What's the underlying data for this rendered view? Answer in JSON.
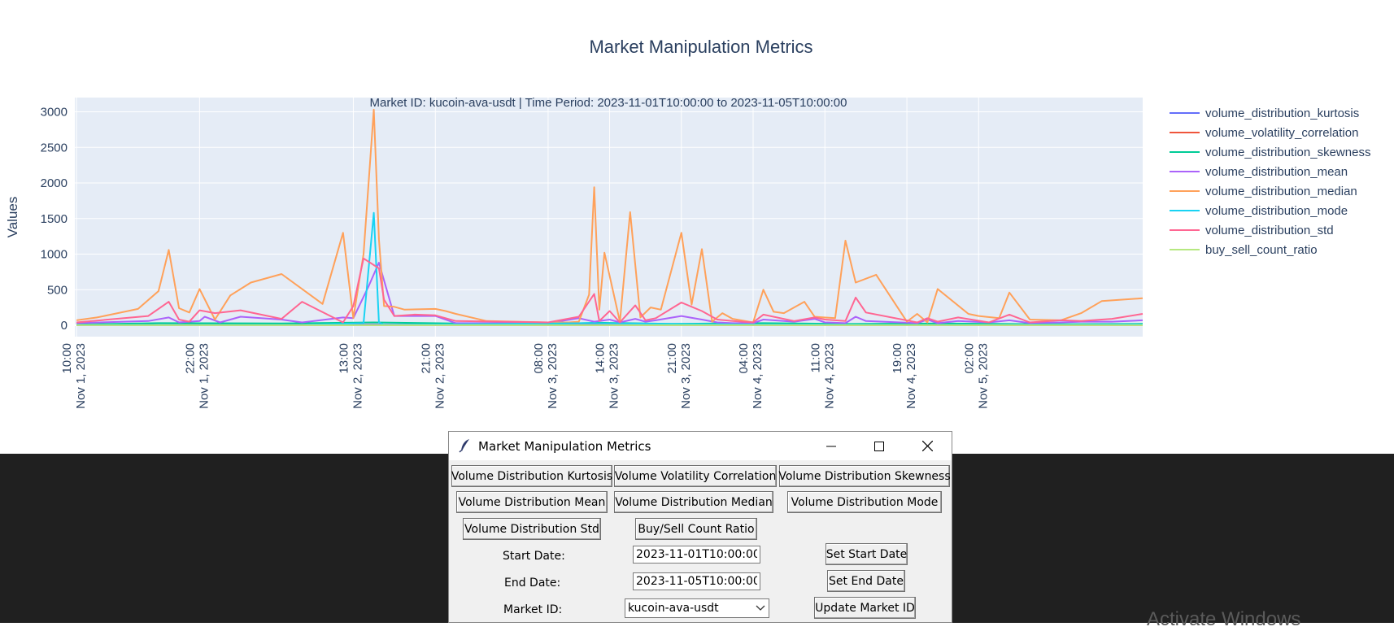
{
  "chart_data": {
    "type": "line",
    "title": "Market Manipulation Metrics",
    "subtitle": "Market ID: kucoin-ava-usdt | Time Period: 2023-11-01T10:00:00 to 2023-11-05T10:00:00",
    "ylabel": "Values",
    "xlabel": "",
    "ylim": [
      -160,
      3200
    ],
    "xlim": [
      "2023-11-01T09:50",
      "2023-11-05T18:00"
    ],
    "grid": true,
    "legend_position": "right",
    "yticks": [
      0,
      500,
      1000,
      1500,
      2000,
      2500,
      3000
    ],
    "xticks": [
      {
        "at": "2023-11-01T10:00",
        "time": "10:00",
        "date": "Nov 1, 2023"
      },
      {
        "at": "2023-11-01T22:00",
        "time": "22:00",
        "date": "Nov 1, 2023"
      },
      {
        "at": "2023-11-02T13:00",
        "time": "13:00",
        "date": "Nov 2, 2023"
      },
      {
        "at": "2023-11-02T21:00",
        "time": "21:00",
        "date": "Nov 2, 2023"
      },
      {
        "at": "2023-11-03T08:00",
        "time": "08:00",
        "date": "Nov 3, 2023"
      },
      {
        "at": "2023-11-03T14:00",
        "time": "14:00",
        "date": "Nov 3, 2023"
      },
      {
        "at": "2023-11-03T21:00",
        "time": "21:00",
        "date": "Nov 3, 2023"
      },
      {
        "at": "2023-11-04T04:00",
        "time": "04:00",
        "date": "Nov 4, 2023"
      },
      {
        "at": "2023-11-04T11:00",
        "time": "11:00",
        "date": "Nov 4, 2023"
      },
      {
        "at": "2023-11-04T19:00",
        "time": "19:00",
        "date": "Nov 4, 2023"
      },
      {
        "at": "2023-11-05T02:00",
        "time": "02:00",
        "date": "Nov 5, 2023"
      }
    ],
    "series": [
      {
        "name": "volume_distribution_kurtosis",
        "color": "#636efa",
        "x": [
          "2023-11-01T10:00",
          "2023-11-02T08:00",
          "2023-11-02T15:00",
          "2023-11-03T09:00",
          "2023-11-03T12:00",
          "2023-11-03T19:00",
          "2023-11-04T04:00",
          "2023-11-04T12:00",
          "2023-11-04T20:00",
          "2023-11-05T06:00",
          "2023-11-05T18:00"
        ],
        "y": [
          5,
          8,
          10,
          6,
          12,
          9,
          14,
          8,
          10,
          7,
          9
        ]
      },
      {
        "name": "volume_volatility_correlation",
        "color": "#EF553B",
        "x": [
          "2023-11-01T10:00",
          "2023-11-02T00:00",
          "2023-11-02T16:00",
          "2023-11-03T10:00",
          "2023-11-04T02:00",
          "2023-11-04T18:00",
          "2023-11-05T18:00"
        ],
        "y": [
          1,
          1,
          1,
          1,
          1,
          1,
          1
        ]
      },
      {
        "name": "volume_distribution_skewness",
        "color": "#00cc96",
        "x": [
          "2023-11-01T10:00",
          "2023-11-01T18:00",
          "2023-11-02T06:00",
          "2023-11-02T15:00",
          "2023-11-03T06:00",
          "2023-11-03T13:00",
          "2023-11-03T20:00",
          "2023-11-04T05:00",
          "2023-11-04T13:00",
          "2023-11-04T22:00",
          "2023-11-05T08:00",
          "2023-11-05T18:00"
        ],
        "y": [
          10,
          30,
          25,
          40,
          12,
          35,
          20,
          30,
          18,
          25,
          15,
          20
        ]
      },
      {
        "name": "volume_distribution_mean",
        "color": "#ab63fa",
        "x": [
          "2023-11-01T10:00",
          "2023-11-01T17:00",
          "2023-11-01T19:00",
          "2023-11-01T20:00",
          "2023-11-01T22:00",
          "2023-11-01T22:30",
          "2023-11-02T00:00",
          "2023-11-02T02:00",
          "2023-11-02T06:00",
          "2023-11-02T08:00",
          "2023-11-02T12:00",
          "2023-11-02T13:00",
          "2023-11-02T14:30",
          "2023-11-02T15:30",
          "2023-11-02T17:00",
          "2023-11-02T21:00",
          "2023-11-02T23:00",
          "2023-11-03T08:00",
          "2023-11-03T11:00",
          "2023-11-03T12:30",
          "2023-11-03T14:00",
          "2023-11-03T15:00",
          "2023-11-03T16:30",
          "2023-11-03T17:30",
          "2023-11-03T18:30",
          "2023-11-03T21:00",
          "2023-11-03T23:00",
          "2023-11-04T00:30",
          "2023-11-04T02:00",
          "2023-11-04T04:00",
          "2023-11-04T05:00",
          "2023-11-04T08:00",
          "2023-11-04T10:00",
          "2023-11-04T11:00",
          "2023-11-04T13:00",
          "2023-11-04T14:00",
          "2023-11-04T15:00",
          "2023-11-04T20:00",
          "2023-11-04T21:00",
          "2023-11-04T22:00",
          "2023-11-05T00:00",
          "2023-11-05T03:00",
          "2023-11-05T05:00",
          "2023-11-05T07:00",
          "2023-11-05T10:00",
          "2023-11-05T12:00",
          "2023-11-05T15:00",
          "2023-11-05T18:00"
        ],
        "y": [
          30,
          60,
          110,
          40,
          60,
          120,
          40,
          120,
          80,
          40,
          110,
          100,
          550,
          880,
          130,
          130,
          30,
          30,
          100,
          50,
          80,
          40,
          90,
          50,
          70,
          130,
          80,
          40,
          30,
          30,
          80,
          50,
          90,
          40,
          30,
          120,
          60,
          30,
          80,
          30,
          60,
          40,
          70,
          30,
          40,
          50,
          50,
          70
        ]
      },
      {
        "name": "volume_distribution_median",
        "color": "#FFA15A",
        "x": [
          "2023-11-01T10:00",
          "2023-11-01T12:00",
          "2023-11-01T16:00",
          "2023-11-01T18:00",
          "2023-11-01T19:00",
          "2023-11-01T20:00",
          "2023-11-01T21:00",
          "2023-11-01T22:00",
          "2023-11-01T23:30",
          "2023-11-02T01:00",
          "2023-11-02T03:00",
          "2023-11-02T06:00",
          "2023-11-02T10:00",
          "2023-11-02T12:00",
          "2023-11-02T13:00",
          "2023-11-02T14:00",
          "2023-11-02T15:00",
          "2023-11-02T15:30",
          "2023-11-02T16:00",
          "2023-11-02T17:00",
          "2023-11-02T18:00",
          "2023-11-02T21:00",
          "2023-11-02T22:00",
          "2023-11-02T23:00",
          "2023-11-03T02:00",
          "2023-11-03T05:00",
          "2023-11-03T08:00",
          "2023-11-03T10:00",
          "2023-11-03T11:00",
          "2023-11-03T12:00",
          "2023-11-03T12:30",
          "2023-11-03T13:00",
          "2023-11-03T13:30",
          "2023-11-03T15:00",
          "2023-11-03T16:00",
          "2023-11-03T17:00",
          "2023-11-03T18:00",
          "2023-11-03T19:00",
          "2023-11-03T21:00",
          "2023-11-03T22:00",
          "2023-11-03T23:00",
          "2023-11-04T00:00",
          "2023-11-04T01:00",
          "2023-11-04T02:00",
          "2023-11-04T04:00",
          "2023-11-04T05:00",
          "2023-11-04T06:00",
          "2023-11-04T07:00",
          "2023-11-04T09:00",
          "2023-11-04T10:00",
          "2023-11-04T12:00",
          "2023-11-04T13:00",
          "2023-11-04T14:00",
          "2023-11-04T16:00",
          "2023-11-04T19:00",
          "2023-11-04T20:00",
          "2023-11-04T21:00",
          "2023-11-04T22:00",
          "2023-11-05T01:00",
          "2023-11-05T02:00",
          "2023-11-05T04:00",
          "2023-11-05T05:00",
          "2023-11-05T07:00",
          "2023-11-05T10:00",
          "2023-11-05T12:00",
          "2023-11-05T14:00",
          "2023-11-05T16:00",
          "2023-11-05T18:00"
        ],
        "y": [
          70,
          110,
          230,
          480,
          1060,
          240,
          180,
          510,
          80,
          420,
          600,
          720,
          300,
          1300,
          100,
          1000,
          3030,
          1210,
          270,
          260,
          220,
          230,
          200,
          160,
          60,
          50,
          40,
          40,
          50,
          430,
          1940,
          220,
          1020,
          50,
          1590,
          110,
          250,
          220,
          1300,
          290,
          1070,
          50,
          170,
          90,
          40,
          500,
          190,
          170,
          330,
          120,
          100,
          1190,
          600,
          710,
          50,
          160,
          40,
          510,
          160,
          130,
          100,
          460,
          80,
          70,
          170,
          340,
          360,
          380
        ]
      },
      {
        "name": "volume_distribution_mode",
        "color": "#19d3f3",
        "x": [
          "2023-11-01T10:00",
          "2023-11-02T08:00",
          "2023-11-02T14:00",
          "2023-11-02T15:00",
          "2023-11-02T15:30",
          "2023-11-02T16:00",
          "2023-11-03T12:00",
          "2023-11-04T05:00",
          "2023-11-04T20:00",
          "2023-11-05T18:00"
        ],
        "y": [
          5,
          5,
          30,
          1580,
          40,
          5,
          30,
          10,
          5,
          10
        ]
      },
      {
        "name": "volume_distribution_std",
        "color": "#FF6692",
        "x": [
          "2023-11-01T10:00",
          "2023-11-01T17:00",
          "2023-11-01T19:00",
          "2023-11-01T20:00",
          "2023-11-01T21:00",
          "2023-11-01T22:00",
          "2023-11-01T23:30",
          "2023-11-02T02:00",
          "2023-11-02T06:00",
          "2023-11-02T08:00",
          "2023-11-02T12:00",
          "2023-11-02T13:00",
          "2023-11-02T14:00",
          "2023-11-02T15:30",
          "2023-11-02T16:00",
          "2023-11-02T17:00",
          "2023-11-02T19:00",
          "2023-11-02T21:00",
          "2023-11-02T23:00",
          "2023-11-03T08:00",
          "2023-11-03T11:00",
          "2023-11-03T12:30",
          "2023-11-03T13:00",
          "2023-11-03T14:00",
          "2023-11-03T15:00",
          "2023-11-03T16:30",
          "2023-11-03T17:30",
          "2023-11-03T18:30",
          "2023-11-03T21:00",
          "2023-11-03T23:00",
          "2023-11-04T00:30",
          "2023-11-04T02:00",
          "2023-11-04T04:00",
          "2023-11-04T05:00",
          "2023-11-04T08:00",
          "2023-11-04T10:00",
          "2023-11-04T11:00",
          "2023-11-04T13:00",
          "2023-11-04T14:00",
          "2023-11-04T15:00",
          "2023-11-04T20:00",
          "2023-11-04T21:00",
          "2023-11-04T22:00",
          "2023-11-05T00:00",
          "2023-11-05T03:00",
          "2023-11-05T05:00",
          "2023-11-05T07:00",
          "2023-11-05T10:00",
          "2023-11-05T12:00",
          "2023-11-05T15:00",
          "2023-11-05T18:00"
        ],
        "y": [
          40,
          130,
          330,
          80,
          50,
          210,
          170,
          210,
          90,
          330,
          40,
          270,
          940,
          800,
          360,
          130,
          150,
          140,
          60,
          40,
          120,
          440,
          60,
          200,
          40,
          280,
          70,
          100,
          320,
          200,
          80,
          60,
          40,
          150,
          60,
          110,
          80,
          60,
          390,
          180,
          40,
          100,
          50,
          110,
          40,
          150,
          40,
          70,
          60,
          90,
          160
        ]
      },
      {
        "name": "buy_sell_count_ratio",
        "color": "#B6E880",
        "x": [
          "2023-11-01T10:00",
          "2023-11-05T18:00"
        ],
        "y": [
          1,
          1
        ]
      }
    ]
  },
  "app_window": {
    "title": "Market Manipulation Metrics",
    "buttons": {
      "kurtosis": "Volume Distribution Kurtosis",
      "volatility_corr": "Volume Volatility Correlation",
      "skewness": "Volume Distribution Skewness",
      "mean": "Volume Distribution Mean",
      "median": "Volume Distribution Median",
      "mode": "Volume Distribution Mode",
      "std": "Volume Distribution Std",
      "buy_sell": "Buy/Sell Count Ratio",
      "set_start": "Set Start Date",
      "set_end": "Set End Date",
      "update_market": "Update Market ID"
    },
    "labels": {
      "start_date": "Start Date:",
      "end_date": "End Date:",
      "market_id": "Market ID:"
    },
    "inputs": {
      "start_date": "2023-11-01T10:00:00",
      "end_date": "2023-11-05T10:00:00"
    },
    "market_select": {
      "selected": "kucoin-ava-usdt"
    }
  },
  "background_text": "Activate Windows"
}
